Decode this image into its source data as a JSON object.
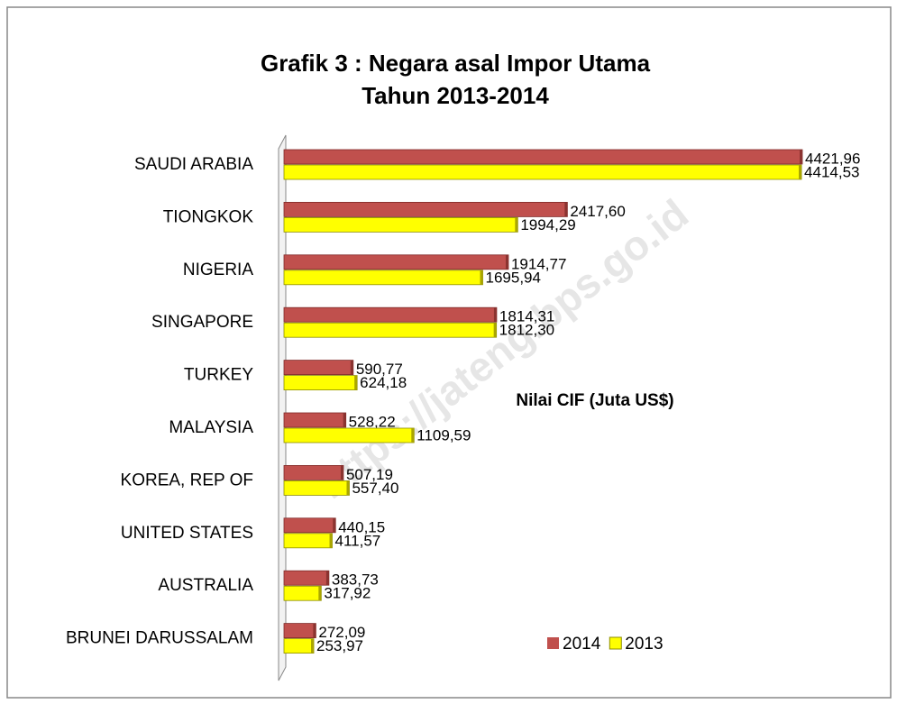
{
  "chart_data": {
    "type": "bar",
    "orientation": "horizontal",
    "title": "Grafik 3 : Negara asal Impor Utama",
    "subtitle": "Tahun 2013-2014",
    "annotation": "Nilai CIF (Juta US$)",
    "watermark": "https://jateng.bps.go.id",
    "categories": [
      "SAUDI ARABIA",
      "TIONGKOK",
      "NIGERIA",
      "SINGAPORE",
      "TURKEY",
      "MALAYSIA",
      "KOREA, REP OF",
      "UNITED  STATES",
      "AUSTRALIA",
      "BRUNEI  DARUSSALAM"
    ],
    "series": [
      {
        "name": "2014",
        "color": "#c0504d",
        "values": [
          4421.96,
          2417.6,
          1914.77,
          1814.31,
          590.77,
          528.22,
          507.19,
          440.15,
          383.73,
          272.09
        ],
        "value_labels": [
          "4421,96",
          "2417,60",
          "1914,77",
          "1814,31",
          "590,77",
          "528,22",
          "507,19",
          "440,15",
          "383,73",
          "272,09"
        ]
      },
      {
        "name": "2013",
        "color": "#ffff00",
        "values": [
          4414.53,
          1994.29,
          1695.94,
          1812.3,
          624.18,
          1109.59,
          557.4,
          411.57,
          317.92,
          253.97
        ],
        "value_labels": [
          "4414,53",
          "1994,29",
          "1695,94",
          "1812,30",
          "624,18",
          "1109,59",
          "557,40",
          "411,57",
          "317,92",
          "253,97"
        ]
      }
    ],
    "legend": "bottom-right"
  }
}
